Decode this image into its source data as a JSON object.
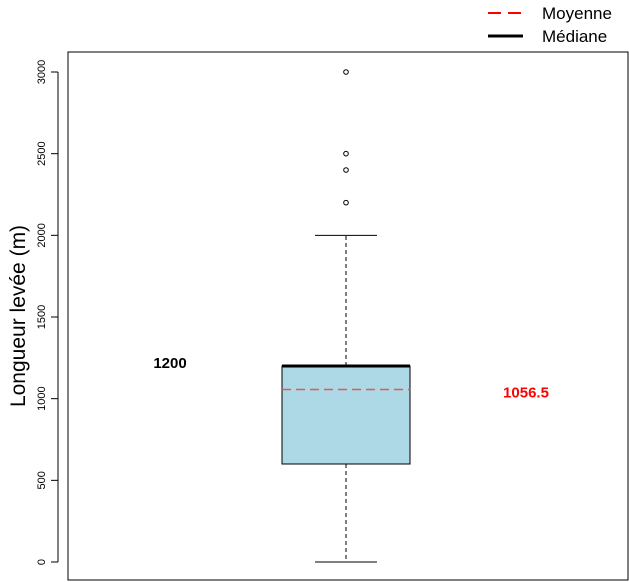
{
  "chart_data": {
    "type": "boxplot",
    "ylabel": "Longueur levée (m)",
    "ylim": [
      -100,
      3100
    ],
    "yticks": [
      0,
      500,
      1000,
      1500,
      2000,
      2500,
      3000
    ],
    "ytick_labels": [
      "0",
      "500",
      "1000",
      "1500",
      "2000",
      "2500",
      "3000"
    ],
    "box": {
      "whisker_low": 0,
      "q1": 600,
      "median": 1200,
      "q3": 1200,
      "whisker_high": 2000,
      "mean": 1056.5
    },
    "outliers": [
      2200,
      2400,
      2500,
      3000
    ],
    "annotations": [
      {
        "text": "1200",
        "kind": "median"
      },
      {
        "text": "1056.5",
        "kind": "mean"
      }
    ],
    "legend": {
      "position": "top-right",
      "entries": [
        {
          "label": "Moyenne",
          "style": "dashed",
          "color": "#ff0000"
        },
        {
          "label": "Médiane",
          "style": "solid",
          "color": "#000000"
        }
      ]
    },
    "colors": {
      "box_fill": "#add8e6",
      "mean_line": "#e05a5a",
      "mean_text": "#ff0000",
      "median_line": "#000000"
    }
  }
}
